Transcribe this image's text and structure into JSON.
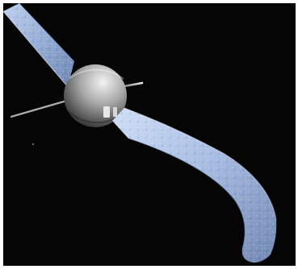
{
  "image": {
    "subject": "satellite-render",
    "colors": {
      "space": "#050505",
      "panel_light": "#c9d9f0",
      "panel_mid": "#8ea7cf",
      "panel_dark": "#58709a",
      "body_light": "#f0f0f0",
      "body_shadow": "#3a3a3a",
      "frame": "#ffffff"
    }
  }
}
